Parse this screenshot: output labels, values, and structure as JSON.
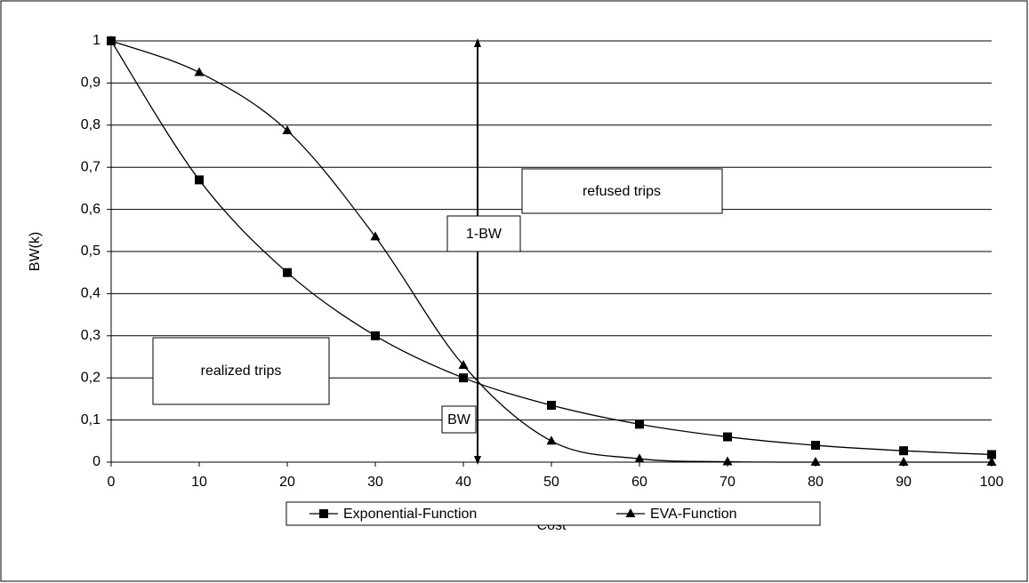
{
  "chart_data": {
    "type": "line",
    "x_label": "Cost",
    "y_label": "BW(k)",
    "x": [
      0,
      10,
      20,
      30,
      40,
      50,
      60,
      70,
      80,
      90,
      100
    ],
    "series": [
      {
        "name": "Exponential-Function",
        "color": "#000000",
        "marker": "square",
        "values": [
          1,
          0.67,
          0.45,
          0.3,
          0.2,
          0.135,
          0.09,
          0.06,
          0.04,
          0.027,
          0.018
        ]
      },
      {
        "name": "EVA-Function",
        "color": "#000000",
        "marker": "triangle",
        "values": [
          1,
          0.925,
          0.787,
          0.535,
          0.23,
          0.05,
          0.008,
          0.001,
          0,
          0,
          0
        ]
      }
    ],
    "xlim": [
      0,
      100
    ],
    "ylim": [
      0,
      1
    ],
    "xticks": [
      0,
      10,
      20,
      30,
      40,
      50,
      60,
      70,
      80,
      90,
      100
    ],
    "yticks": [
      0,
      {
        "value": 0.1,
        "label": "0,1"
      },
      {
        "value": 0.2,
        "label": "0,2"
      },
      {
        "value": 0.3,
        "label": "0,3"
      },
      {
        "value": 0.4,
        "label": "0,4"
      },
      {
        "value": 0.5,
        "label": "0,5"
      },
      {
        "value": 0.6,
        "label": "0,6"
      },
      {
        "value": 0.7,
        "label": "0,7"
      },
      {
        "value": 0.8,
        "label": "0,8"
      },
      {
        "value": 0.9,
        "label": "0,9"
      },
      1
    ],
    "grid": true,
    "legend": "bottom",
    "annotations": [
      "refused trips",
      "realized trips",
      "1-BW",
      "BW"
    ]
  }
}
